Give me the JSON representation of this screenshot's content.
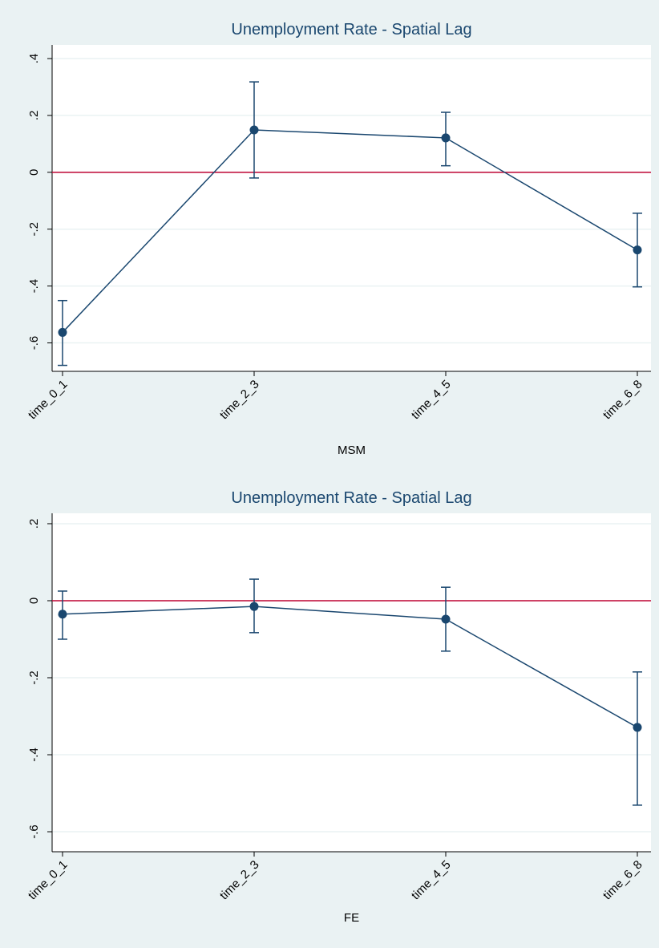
{
  "chart_data": [
    {
      "type": "line",
      "title": "Unemployment Rate - Spatial Lag",
      "x_label": "MSM",
      "categories": [
        "time_0_1",
        "time_2_3",
        "time_4_5",
        "time_6_8"
      ],
      "values": [
        -0.563,
        0.149,
        0.121,
        -0.273
      ],
      "ci_lower": [
        -0.679,
        -0.02,
        0.023,
        -0.403
      ],
      "ci_upper": [
        -0.451,
        0.318,
        0.211,
        -0.144
      ],
      "color": "#1a476f",
      "ylim": [
        -0.7,
        0.448
      ],
      "yticks": [
        {
          "value": -0.6,
          "label": "-.6"
        },
        {
          "value": -0.4,
          "label": "-.4"
        },
        {
          "value": -0.2,
          "label": "-.2"
        },
        0,
        {
          "value": 0.2,
          "label": ".2"
        },
        {
          "value": 0.4,
          "label": ".4"
        }
      ],
      "grid": true,
      "hline": {
        "value": 0,
        "color": "#c10534"
      }
    },
    {
      "type": "line",
      "title": "Unemployment Rate - Spatial Lag",
      "x_label": "FE",
      "categories": [
        "time_0_1",
        "time_2_3",
        "time_4_5",
        "time_6_8"
      ],
      "values": [
        -0.035,
        -0.015,
        -0.048,
        -0.329
      ],
      "ci_lower": [
        -0.1,
        -0.083,
        -0.131,
        -0.531
      ],
      "ci_upper": [
        0.025,
        0.056,
        0.035,
        -0.185
      ],
      "color": "#1a476f",
      "ylim": [
        -0.652,
        0.227
      ],
      "yticks": [
        {
          "value": -0.6,
          "label": "-.6"
        },
        {
          "value": -0.4,
          "label": "-.4"
        },
        {
          "value": -0.2,
          "label": "-.2"
        },
        0,
        {
          "value": 0.2,
          "label": ".2"
        }
      ],
      "grid": true,
      "hline": {
        "value": 0,
        "color": "#c10534"
      }
    }
  ]
}
